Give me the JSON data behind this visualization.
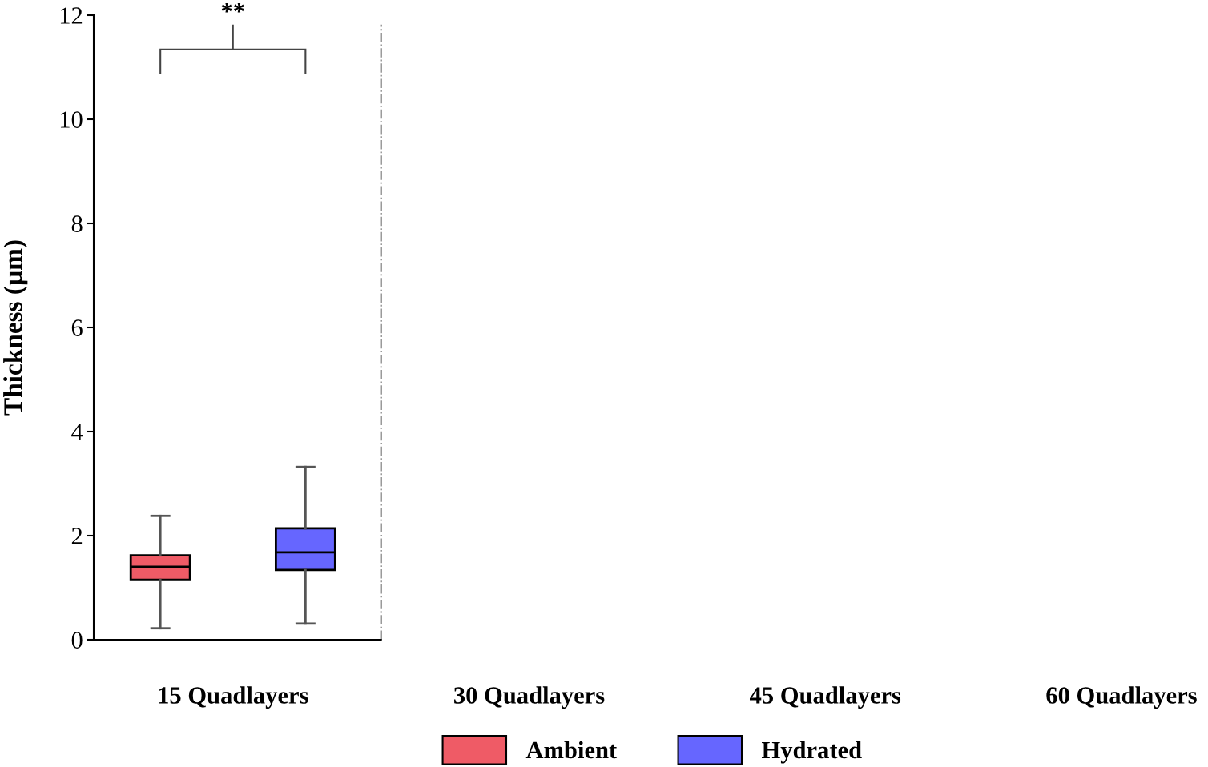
{
  "chart_data": {
    "type": "box",
    "ylabel": "Thickness (µm)",
    "categories": [
      "15 Quadlayers",
      "30 Quadlayers",
      "45 Quadlayers",
      "60 Quadlayers"
    ],
    "series": [
      {
        "name": "Ambient",
        "color": "#ef5b66",
        "boxes": [
          {
            "low": 0.22,
            "q1": 1.15,
            "median": 1.4,
            "q3": 1.62,
            "high": 2.38
          },
          null,
          null,
          null
        ]
      },
      {
        "name": "Hydrated",
        "color": "#6666ff",
        "boxes": [
          {
            "low": 0.31,
            "q1": 1.34,
            "median": 1.68,
            "q3": 2.14,
            "high": 3.32
          },
          null,
          null,
          null
        ]
      }
    ],
    "ylim": [
      0,
      12
    ],
    "yticks": [
      0,
      2,
      4,
      6,
      8,
      10,
      12
    ],
    "annotations": [
      "**"
    ],
    "grid": false,
    "legend": "bottom"
  }
}
